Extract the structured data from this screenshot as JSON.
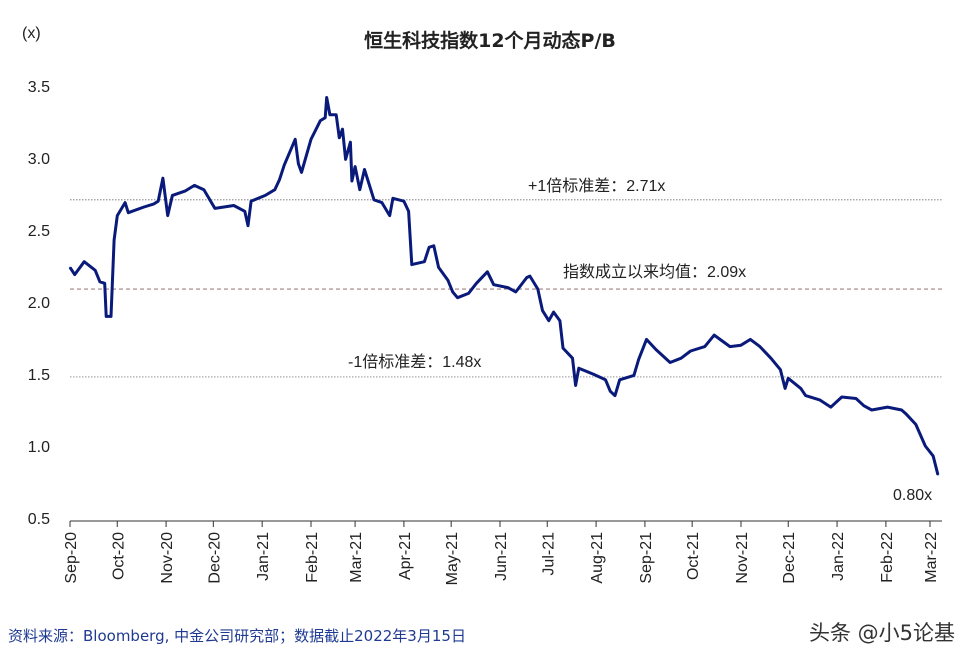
{
  "chart_data": {
    "type": "line",
    "title": "恒生科技指数12个月动态P/B",
    "ylabel": "(x)",
    "xlabel": "",
    "ylim": [
      0.5,
      3.5
    ],
    "yticks": [
      "0.5",
      "1.0",
      "1.5",
      "2.0",
      "2.5",
      "3.0",
      "3.5"
    ],
    "xlim": [
      "2020-09-01",
      "2022-03-01"
    ],
    "xticks": [
      {
        "date": "2020-09-01",
        "label": "Sep-20"
      },
      {
        "date": "2020-10-01",
        "label": "Oct-20"
      },
      {
        "date": "2020-11-01",
        "label": "Nov-20"
      },
      {
        "date": "2020-12-01",
        "label": "Dec-20"
      },
      {
        "date": "2021-01-01",
        "label": "Jan-21"
      },
      {
        "date": "2021-02-01",
        "label": "Feb-21"
      },
      {
        "date": "2021-03-01",
        "label": "Mar-21"
      },
      {
        "date": "2021-04-01",
        "label": "Apr-21"
      },
      {
        "date": "2021-05-01",
        "label": "May-21"
      },
      {
        "date": "2021-06-01",
        "label": "Jun-21"
      },
      {
        "date": "2021-07-01",
        "label": "Jul-21"
      },
      {
        "date": "2021-08-01",
        "label": "Aug-21"
      },
      {
        "date": "2021-09-01",
        "label": "Sep-21"
      },
      {
        "date": "2021-10-01",
        "label": "Oct-21"
      },
      {
        "date": "2021-11-01",
        "label": "Nov-21"
      },
      {
        "date": "2021-12-01",
        "label": "Dec-21"
      },
      {
        "date": "2022-01-01",
        "label": "Jan-22"
      },
      {
        "date": "2022-02-01",
        "label": "Feb-22"
      },
      {
        "date": "2022-03-01",
        "label": "Mar-22"
      }
    ],
    "grid": false,
    "series": [
      {
        "color": "#0a1a7a",
        "points": [
          [
            "2020-09-01",
            2.24
          ],
          [
            "2020-09-04",
            2.19
          ],
          [
            "2020-09-10",
            2.28
          ],
          [
            "2020-09-17",
            2.22
          ],
          [
            "2020-09-20",
            2.14
          ],
          [
            "2020-09-23",
            2.13
          ],
          [
            "2020-09-24",
            1.9
          ],
          [
            "2020-09-27",
            1.9
          ],
          [
            "2020-09-29",
            2.43
          ],
          [
            "2020-10-01",
            2.6
          ],
          [
            "2020-10-06",
            2.69
          ],
          [
            "2020-10-08",
            2.62
          ],
          [
            "2020-10-18",
            2.66
          ],
          [
            "2020-10-24",
            2.68
          ],
          [
            "2020-10-27",
            2.7
          ],
          [
            "2020-10-30",
            2.86
          ],
          [
            "2020-11-02",
            2.6
          ],
          [
            "2020-11-05",
            2.74
          ],
          [
            "2020-11-13",
            2.77
          ],
          [
            "2020-11-19",
            2.81
          ],
          [
            "2020-11-25",
            2.78
          ],
          [
            "2020-12-02",
            2.65
          ],
          [
            "2020-12-14",
            2.67
          ],
          [
            "2020-12-21",
            2.63
          ],
          [
            "2020-12-23",
            2.53
          ],
          [
            "2020-12-25",
            2.7
          ],
          [
            "2021-01-03",
            2.74
          ],
          [
            "2021-01-09",
            2.78
          ],
          [
            "2021-01-12",
            2.85
          ],
          [
            "2021-01-15",
            2.95
          ],
          [
            "2021-01-22",
            3.13
          ],
          [
            "2021-01-24",
            2.96
          ],
          [
            "2021-01-26",
            2.9
          ],
          [
            "2021-02-01",
            3.13
          ],
          [
            "2021-02-07",
            3.26
          ],
          [
            "2021-02-10",
            3.28
          ],
          [
            "2021-02-11",
            3.42
          ],
          [
            "2021-02-13",
            3.3
          ],
          [
            "2021-02-17",
            3.3
          ],
          [
            "2021-02-19",
            3.14
          ],
          [
            "2021-02-21",
            3.2
          ],
          [
            "2021-02-23",
            2.99
          ],
          [
            "2021-02-26",
            3.11
          ],
          [
            "2021-02-27",
            2.84
          ],
          [
            "2021-03-01",
            2.94
          ],
          [
            "2021-03-04",
            2.78
          ],
          [
            "2021-03-07",
            2.92
          ],
          [
            "2021-03-13",
            2.71
          ],
          [
            "2021-03-18",
            2.69
          ],
          [
            "2021-03-23",
            2.6
          ],
          [
            "2021-03-25",
            2.72
          ],
          [
            "2021-04-01",
            2.7
          ],
          [
            "2021-04-04",
            2.63
          ],
          [
            "2021-04-06",
            2.26
          ],
          [
            "2021-04-14",
            2.28
          ],
          [
            "2021-04-17",
            2.38
          ],
          [
            "2021-04-20",
            2.39
          ],
          [
            "2021-04-23",
            2.24
          ],
          [
            "2021-04-29",
            2.15
          ],
          [
            "2021-05-02",
            2.07
          ],
          [
            "2021-05-05",
            2.03
          ],
          [
            "2021-05-12",
            2.06
          ],
          [
            "2021-05-17",
            2.13
          ],
          [
            "2021-05-24",
            2.21
          ],
          [
            "2021-05-28",
            2.12
          ],
          [
            "2021-06-06",
            2.1
          ],
          [
            "2021-06-11",
            2.07
          ],
          [
            "2021-06-18",
            2.17
          ],
          [
            "2021-06-20",
            2.18
          ],
          [
            "2021-06-25",
            2.09
          ],
          [
            "2021-06-28",
            1.94
          ],
          [
            "2021-07-02",
            1.87
          ],
          [
            "2021-07-05",
            1.93
          ],
          [
            "2021-07-09",
            1.87
          ],
          [
            "2021-07-11",
            1.68
          ],
          [
            "2021-07-17",
            1.61
          ],
          [
            "2021-07-19",
            1.42
          ],
          [
            "2021-07-21",
            1.54
          ],
          [
            "2021-07-30",
            1.5
          ],
          [
            "2021-08-07",
            1.46
          ],
          [
            "2021-08-10",
            1.38
          ],
          [
            "2021-08-13",
            1.35
          ],
          [
            "2021-08-16",
            1.46
          ],
          [
            "2021-08-25",
            1.49
          ],
          [
            "2021-08-28",
            1.6
          ],
          [
            "2021-09-02",
            1.74
          ],
          [
            "2021-09-08",
            1.67
          ],
          [
            "2021-09-17",
            1.58
          ],
          [
            "2021-09-24",
            1.61
          ],
          [
            "2021-09-30",
            1.66
          ],
          [
            "2021-10-09",
            1.69
          ],
          [
            "2021-10-15",
            1.77
          ],
          [
            "2021-10-25",
            1.69
          ],
          [
            "2021-11-01",
            1.7
          ],
          [
            "2021-11-07",
            1.74
          ],
          [
            "2021-11-13",
            1.69
          ],
          [
            "2021-11-20",
            1.61
          ],
          [
            "2021-11-26",
            1.53
          ],
          [
            "2021-11-29",
            1.4
          ],
          [
            "2021-12-01",
            1.47
          ],
          [
            "2021-12-09",
            1.4
          ],
          [
            "2021-12-12",
            1.35
          ],
          [
            "2021-12-21",
            1.32
          ],
          [
            "2021-12-28",
            1.27
          ],
          [
            "2022-01-04",
            1.34
          ],
          [
            "2022-01-13",
            1.33
          ],
          [
            "2022-01-18",
            1.28
          ],
          [
            "2022-01-23",
            1.25
          ],
          [
            "2022-02-02",
            1.27
          ],
          [
            "2022-02-11",
            1.25
          ],
          [
            "2022-02-14",
            1.22
          ],
          [
            "2022-02-20",
            1.15
          ],
          [
            "2022-02-26",
            1.0
          ],
          [
            "2022-03-03",
            0.93
          ],
          [
            "2022-03-06",
            0.8
          ]
        ]
      }
    ],
    "reference_lines": [
      {
        "value": 2.71,
        "label": "+1倍标准差：2.71x",
        "style": "dotted",
        "color": "#999999"
      },
      {
        "value": 2.09,
        "label": "指数成立以来均值：2.09x",
        "style": "dashed",
        "color": "#a08080"
      },
      {
        "value": 1.48,
        "label": "-1倍标准差：1.48x",
        "style": "dotted",
        "color": "#aaaaaa"
      }
    ],
    "annotations": [
      {
        "label": "0.80x"
      }
    ]
  },
  "footer": "资料来源：Bloomberg, 中金公司研究部；数据截止2022年3月15日",
  "watermark": "头条 @小5论基"
}
